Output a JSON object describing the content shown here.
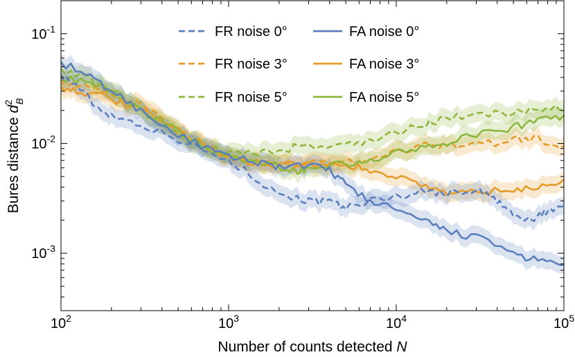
{
  "chart_data": {
    "type": "line",
    "xscale": "log",
    "yscale": "log",
    "xlim": [
      100,
      100000
    ],
    "ylim": [
      0.0003,
      0.2
    ],
    "xlabel": "Number of counts detected N",
    "ylabel": "Bures distance d_B^2",
    "x_ticks": [
      "10^2",
      "10^3",
      "10^4",
      "10^5"
    ],
    "y_ticks": [
      "10^-3",
      "10^-2",
      "10^-1"
    ],
    "grid": false,
    "legend_position": "top-center",
    "colors": {
      "blue": "#5b7fbd",
      "orange": "#e49b28",
      "green": "#8db63c"
    },
    "series": [
      {
        "name": "FR noise 0°",
        "color": "blue",
        "style": "dashed",
        "x": [
          100,
          130,
          160,
          200,
          300,
          500,
          1000,
          1300,
          1800,
          2500,
          3000,
          4000,
          5000,
          7000,
          10000,
          15000,
          20000,
          30000,
          40000,
          50000,
          60000,
          70000,
          80000,
          100000
        ],
        "y": [
          0.042,
          0.032,
          0.022,
          0.018,
          0.015,
          0.011,
          0.0068,
          0.0055,
          0.0038,
          0.0032,
          0.003,
          0.0029,
          0.0026,
          0.003,
          0.0033,
          0.0037,
          0.0035,
          0.0038,
          0.003,
          0.0022,
          0.002,
          0.0021,
          0.0025,
          0.0027
        ]
      },
      {
        "name": "FA noise 0°",
        "color": "blue",
        "style": "solid",
        "x": [
          100,
          150,
          200,
          300,
          500,
          800,
          1000,
          1500,
          2000,
          3000,
          4000,
          5000,
          7000,
          10000,
          15000,
          20000,
          30000,
          50000,
          70000,
          100000
        ],
        "y": [
          0.055,
          0.04,
          0.03,
          0.02,
          0.012,
          0.0085,
          0.0075,
          0.0068,
          0.0062,
          0.0062,
          0.0058,
          0.0042,
          0.003,
          0.0025,
          0.0019,
          0.0016,
          0.0014,
          0.001,
          0.00085,
          0.00078
        ]
      },
      {
        "name": "FR noise 3°",
        "color": "orange",
        "style": "dashed",
        "x": [
          100,
          130,
          200,
          300,
          500,
          800,
          1000,
          1500,
          2000,
          3000,
          5000,
          7000,
          10000,
          15000,
          20000,
          30000,
          50000,
          70000,
          100000
        ],
        "y": [
          0.038,
          0.033,
          0.028,
          0.022,
          0.013,
          0.009,
          0.0075,
          0.0068,
          0.0062,
          0.0065,
          0.0068,
          0.0072,
          0.0085,
          0.0095,
          0.01,
          0.0095,
          0.011,
          0.011,
          0.0095
        ]
      },
      {
        "name": "FA noise 3°",
        "color": "orange",
        "style": "solid",
        "x": [
          100,
          130,
          200,
          300,
          500,
          700,
          1000,
          1500,
          2000,
          3000,
          5000,
          7000,
          10000,
          15000,
          20000,
          30000,
          50000,
          70000,
          100000
        ],
        "y": [
          0.033,
          0.03,
          0.025,
          0.02,
          0.013,
          0.01,
          0.0072,
          0.0068,
          0.0065,
          0.0066,
          0.0062,
          0.0058,
          0.005,
          0.0042,
          0.0035,
          0.0037,
          0.0036,
          0.004,
          0.0047
        ]
      },
      {
        "name": "FR noise 5°",
        "color": "green",
        "style": "dashed",
        "x": [
          100,
          150,
          200,
          300,
          500,
          700,
          1000,
          1500,
          2000,
          3000,
          5000,
          7000,
          10000,
          15000,
          20000,
          30000,
          50000,
          70000,
          100000
        ],
        "y": [
          0.048,
          0.038,
          0.03,
          0.02,
          0.012,
          0.0095,
          0.008,
          0.0082,
          0.0088,
          0.0095,
          0.0098,
          0.0105,
          0.0125,
          0.015,
          0.017,
          0.018,
          0.019,
          0.02,
          0.021
        ]
      },
      {
        "name": "FA noise 5°",
        "color": "green",
        "style": "solid",
        "x": [
          100,
          150,
          200,
          300,
          500,
          700,
          1000,
          1500,
          2000,
          2500,
          3000,
          5000,
          7000,
          10000,
          15000,
          20000,
          30000,
          50000,
          70000,
          100000
        ],
        "y": [
          0.04,
          0.035,
          0.03,
          0.02,
          0.013,
          0.0095,
          0.0075,
          0.0065,
          0.0062,
          0.0055,
          0.006,
          0.0065,
          0.0068,
          0.0085,
          0.009,
          0.01,
          0.012,
          0.014,
          0.016,
          0.018
        ]
      }
    ]
  }
}
